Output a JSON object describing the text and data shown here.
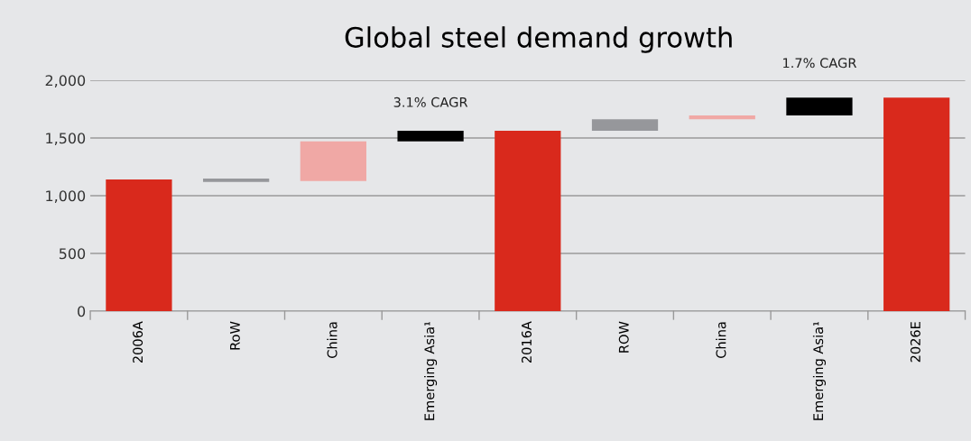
{
  "chart_data": {
    "type": "bar",
    "title": "Global steel demand growth",
    "categories": [
      "2006A",
      "RoW",
      "China",
      "Emerging Asia¹",
      "2016A",
      "ROW",
      "China",
      "Emerging Asia¹",
      "2026E"
    ],
    "values": [
      1140,
      28,
      343,
      93,
      1562,
      100,
      33,
      154,
      1849
    ],
    "base": [
      0,
      1120,
      1127,
      1470,
      0,
      1562,
      1662,
      1695,
      0
    ],
    "colors": [
      "#d9291c",
      "#96979b",
      "#f0a8a5",
      "#000000",
      "#d9291c",
      "#96979b",
      "#f0a8a5",
      "#000000",
      "#d9291c"
    ],
    "ylim": [
      0,
      2000
    ],
    "yticks": [
      {
        "value": 0,
        "label": "0"
      },
      {
        "value": 500,
        "label": "500"
      },
      {
        "value": 1000,
        "label": "1,000"
      },
      {
        "value": 1500,
        "label": "1,500"
      },
      {
        "value": 2000,
        "label": "2,000"
      }
    ],
    "grid": "y",
    "annotations": [
      "3.1% CAGR",
      "1.7% CAGR"
    ]
  }
}
